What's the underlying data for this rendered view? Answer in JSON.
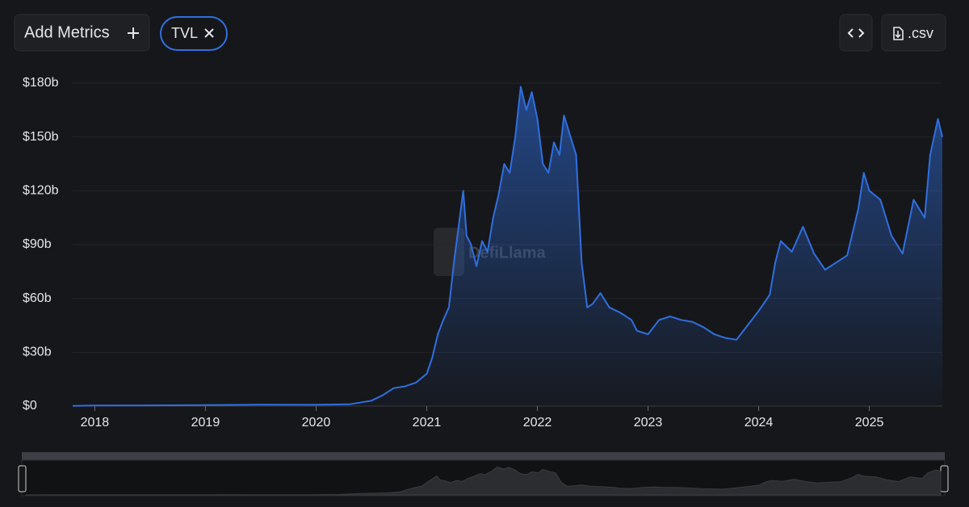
{
  "ui": {
    "add_metrics": "Add Metrics",
    "csv": ".csv",
    "watermark": "DefiLlama"
  },
  "chart_data": {
    "type": "area",
    "x": [
      2017.8,
      2018.0,
      2018.5,
      2019.0,
      2019.5,
      2020.0,
      2020.3,
      2020.5,
      2020.6,
      2020.7,
      2020.8,
      2020.9,
      2021.0,
      2021.05,
      2021.1,
      2021.15,
      2021.2,
      2021.25,
      2021.33,
      2021.36,
      2021.4,
      2021.45,
      2021.5,
      2021.55,
      2021.6,
      2021.65,
      2021.7,
      2021.75,
      2021.8,
      2021.85,
      2021.9,
      2021.95,
      2022.0,
      2022.05,
      2022.1,
      2022.15,
      2022.2,
      2022.24,
      2022.3,
      2022.35,
      2022.4,
      2022.45,
      2022.5,
      2022.57,
      2022.65,
      2022.75,
      2022.85,
      2022.9,
      2023.0,
      2023.1,
      2023.2,
      2023.3,
      2023.4,
      2023.5,
      2023.6,
      2023.7,
      2023.8,
      2023.9,
      2024.0,
      2024.1,
      2024.15,
      2024.2,
      2024.3,
      2024.4,
      2024.5,
      2024.6,
      2024.7,
      2024.8,
      2024.9,
      2024.95,
      2025.0,
      2025.1,
      2025.2,
      2025.3,
      2025.4,
      2025.5,
      2025.55,
      2025.62,
      2025.66
    ],
    "series": [
      {
        "name": "TVL",
        "color": "#2f6fe0",
        "values": [
          0.1,
          0.3,
          0.4,
          0.6,
          0.8,
          0.7,
          1.0,
          3,
          6,
          10,
          11,
          13,
          18,
          27,
          40,
          48,
          55,
          82,
          120,
          95,
          90,
          78,
          92,
          86,
          105,
          118,
          135,
          130,
          150,
          178,
          165,
          175,
          160,
          135,
          130,
          147,
          140,
          162,
          150,
          140,
          80,
          55,
          57,
          63,
          55,
          52,
          48,
          42,
          40,
          48,
          50,
          48,
          47,
          44,
          40,
          38,
          37,
          45,
          53,
          62,
          80,
          92,
          86,
          100,
          85,
          76,
          80,
          84,
          110,
          130,
          120,
          115,
          95,
          85,
          115,
          105,
          140,
          160,
          150
        ]
      }
    ],
    "xlim": [
      2017.8,
      2025.66
    ],
    "xticks": [
      2018,
      2019,
      2020,
      2021,
      2022,
      2023,
      2024,
      2025
    ],
    "ylim": [
      0,
      180
    ],
    "yticks": [
      {
        "value": 0,
        "label": "$0"
      },
      {
        "value": 30,
        "label": "$30b"
      },
      {
        "value": 60,
        "label": "$60b"
      },
      {
        "value": 90,
        "label": "$90b"
      },
      {
        "value": 120,
        "label": "$120b"
      },
      {
        "value": 150,
        "label": "$150b"
      },
      {
        "value": 180,
        "label": "$180b"
      }
    ],
    "grid": true
  }
}
